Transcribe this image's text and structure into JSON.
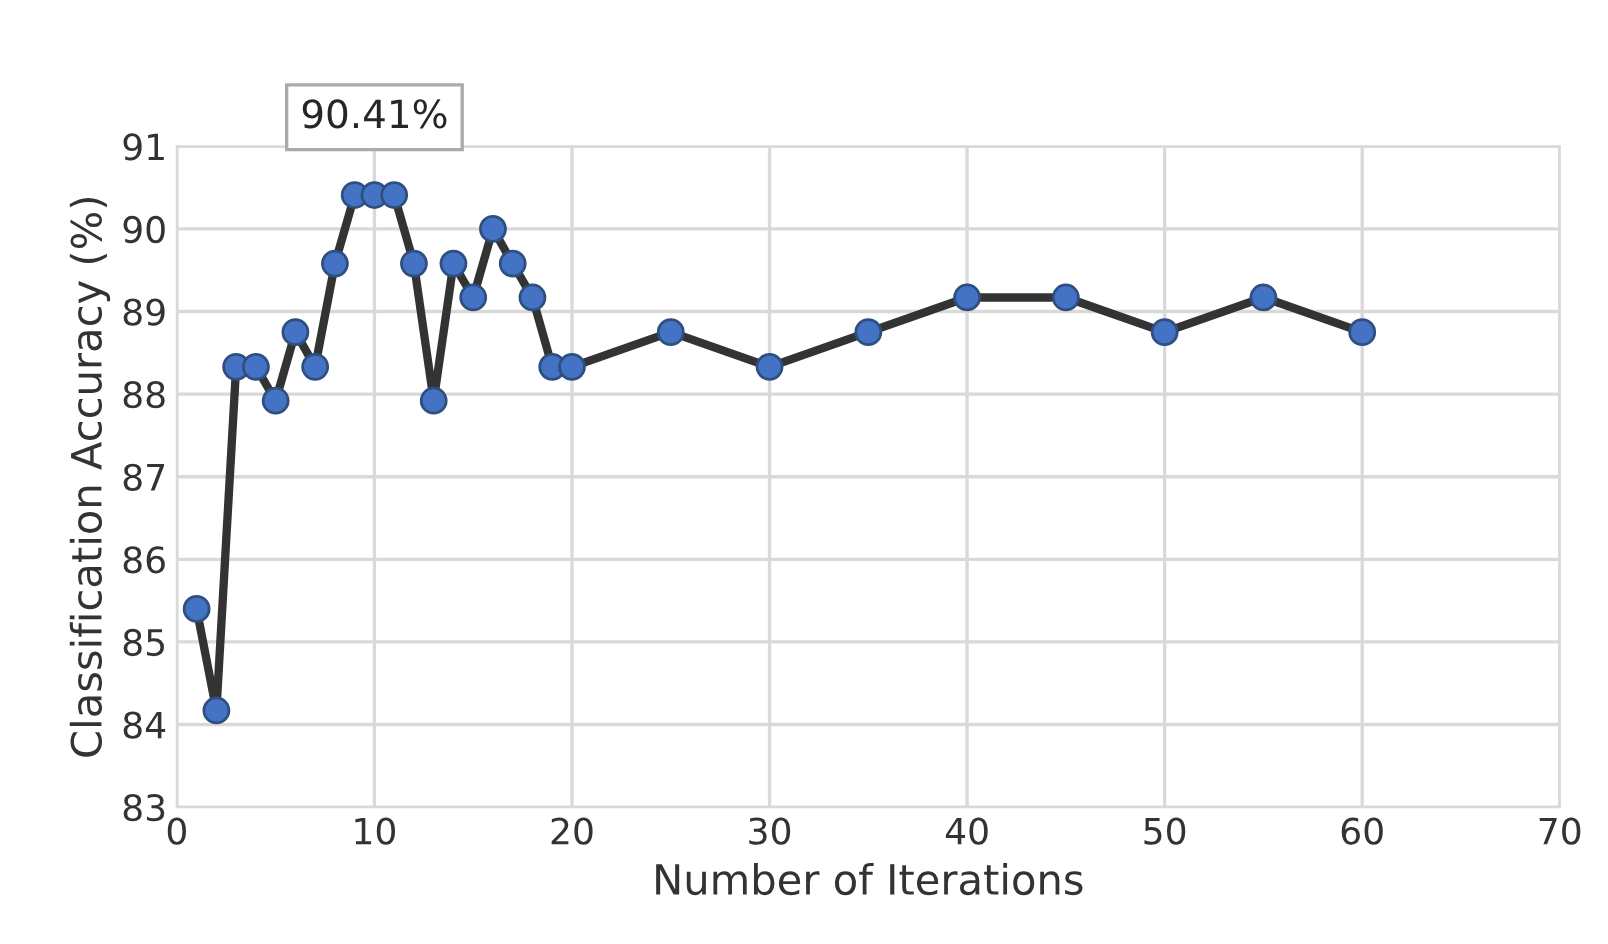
{
  "chart_data": {
    "type": "line",
    "xlabel": "Number of Iterations",
    "ylabel": "Classification Accuracy (%)",
    "x": [
      1,
      2,
      3,
      4,
      5,
      6,
      7,
      8,
      9,
      10,
      11,
      12,
      13,
      14,
      15,
      16,
      17,
      18,
      19,
      20,
      25,
      30,
      35,
      40,
      45,
      50,
      55,
      60
    ],
    "series": [
      {
        "color": "#333333",
        "values": [
          85.4,
          84.17,
          88.33,
          88.33,
          87.92,
          88.75,
          88.33,
          89.58,
          90.41,
          90.41,
          90.41,
          89.58,
          87.92,
          89.58,
          89.17,
          90.0,
          89.58,
          89.17,
          88.33,
          88.33,
          88.75,
          88.33,
          88.75,
          89.17,
          89.17,
          88.75,
          89.17,
          88.75
        ]
      }
    ],
    "xlim": [
      0,
      70
    ],
    "xticks": [
      0,
      10,
      20,
      30,
      40,
      50,
      60,
      70
    ],
    "ylim": [
      83,
      91
    ],
    "yticks": [
      83,
      84,
      85,
      86,
      87,
      88,
      89,
      90,
      91
    ],
    "grid": true,
    "marker": "circle",
    "line_style": "solid",
    "annotations": [
      {
        "text": "90.41%",
        "x": 10,
        "y": 90.41
      }
    ]
  }
}
